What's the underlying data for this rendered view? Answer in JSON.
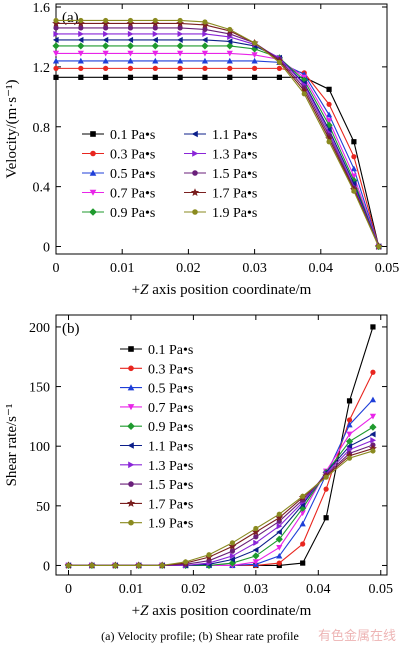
{
  "caption": "(a) Velocity profile; (b) Shear rate profile",
  "watermark": "有色金属在线",
  "chart_data": [
    {
      "type": "line",
      "panel_label": "(a)",
      "xlabel_prefix": "+",
      "xlabel_var": "Z",
      "xlabel_rest": " axis position coordinate/m",
      "ylabel": "Velocity/(m·s⁻¹)",
      "xlim": [
        0,
        0.05
      ],
      "ylim": [
        -0.05,
        1.62
      ],
      "xticks": [
        0,
        0.01,
        0.02,
        0.03,
        0.04,
        0.05
      ],
      "xtick_labels": [
        "0",
        "0.01",
        "0.02",
        "0.03",
        "0.04",
        "0.05"
      ],
      "yticks": [
        0,
        0.4,
        0.8,
        1.2,
        1.6
      ],
      "ytick_labels": [
        "0",
        "0.4",
        "0.8",
        "1.2",
        "1.6"
      ],
      "legend_position": "middle, two columns",
      "x": [
        0,
        0.00375,
        0.0075,
        0.01125,
        0.015,
        0.01875,
        0.0225,
        0.02625,
        0.03,
        0.03375,
        0.0375,
        0.04125,
        0.045,
        0.04875
      ],
      "series": [
        {
          "name": "0.1 Pa•s",
          "color": "#000000",
          "marker": "square",
          "values": [
            1.13,
            1.13,
            1.13,
            1.13,
            1.13,
            1.13,
            1.13,
            1.13,
            1.13,
            1.13,
            1.13,
            1.05,
            0.7,
            0
          ]
        },
        {
          "name": "0.3 Pa•s",
          "color": "#e8261f",
          "marker": "circle",
          "values": [
            1.19,
            1.19,
            1.19,
            1.19,
            1.19,
            1.19,
            1.19,
            1.19,
            1.19,
            1.19,
            1.16,
            0.95,
            0.6,
            0
          ]
        },
        {
          "name": "0.5 Pa•s",
          "color": "#1f3fd8",
          "marker": "triangle-up",
          "values": [
            1.24,
            1.24,
            1.24,
            1.24,
            1.24,
            1.24,
            1.24,
            1.24,
            1.24,
            1.23,
            1.15,
            0.88,
            0.52,
            0
          ]
        },
        {
          "name": "0.7 Pa•s",
          "color": "#e825e8",
          "marker": "triangle-down",
          "values": [
            1.29,
            1.29,
            1.29,
            1.29,
            1.29,
            1.29,
            1.29,
            1.29,
            1.28,
            1.25,
            1.13,
            0.84,
            0.47,
            0
          ]
        },
        {
          "name": "0.9 Pa•s",
          "color": "#1f9a2e",
          "marker": "diamond",
          "values": [
            1.34,
            1.34,
            1.34,
            1.34,
            1.34,
            1.34,
            1.34,
            1.34,
            1.32,
            1.26,
            1.11,
            0.81,
            0.44,
            0
          ]
        },
        {
          "name": "1.1 Pa•s",
          "color": "#0c1f8a",
          "marker": "triangle-left",
          "values": [
            1.38,
            1.38,
            1.38,
            1.38,
            1.38,
            1.38,
            1.38,
            1.37,
            1.34,
            1.26,
            1.09,
            0.78,
            0.42,
            0
          ]
        },
        {
          "name": "1.3 Pa•s",
          "color": "#8a25d8",
          "marker": "triangle-right",
          "values": [
            1.42,
            1.42,
            1.42,
            1.42,
            1.42,
            1.42,
            1.42,
            1.4,
            1.35,
            1.26,
            1.08,
            0.76,
            0.4,
            0
          ]
        },
        {
          "name": "1.5 Pa•s",
          "color": "#6a1f7a",
          "marker": "circle",
          "values": [
            1.46,
            1.46,
            1.46,
            1.46,
            1.46,
            1.46,
            1.45,
            1.42,
            1.36,
            1.25,
            1.06,
            0.74,
            0.39,
            0
          ]
        },
        {
          "name": "1.7 Pa•s",
          "color": "#7a1f1f",
          "marker": "star",
          "values": [
            1.49,
            1.49,
            1.49,
            1.49,
            1.49,
            1.49,
            1.48,
            1.44,
            1.36,
            1.24,
            1.04,
            0.72,
            0.38,
            0
          ]
        },
        {
          "name": "1.9 Pa•s",
          "color": "#8a8a1f",
          "marker": "circle",
          "values": [
            1.51,
            1.51,
            1.51,
            1.51,
            1.51,
            1.51,
            1.5,
            1.45,
            1.36,
            1.23,
            1.02,
            0.7,
            0.37,
            0
          ]
        }
      ]
    },
    {
      "type": "line",
      "panel_label": "(b)",
      "xlabel_prefix": "+",
      "xlabel_var": "Z",
      "xlabel_rest": " axis position coordinate/m",
      "ylabel": "Shear rate/s⁻¹",
      "xlim": [
        -0.002,
        0.051
      ],
      "ylim": [
        -8,
        210
      ],
      "xticks": [
        0,
        0.01,
        0.02,
        0.03,
        0.04,
        0.05
      ],
      "xtick_labels": [
        "0",
        "0.01",
        "0.02",
        "0.03",
        "0.04",
        "0.05"
      ],
      "yticks": [
        0,
        50,
        100,
        150,
        200
      ],
      "ytick_labels": [
        "0",
        "50",
        "100",
        "150",
        "200"
      ],
      "legend_position": "top-right",
      "x": [
        0,
        0.00375,
        0.0075,
        0.01125,
        0.015,
        0.01875,
        0.0225,
        0.02625,
        0.03,
        0.03375,
        0.0375,
        0.04125,
        0.045,
        0.04875
      ],
      "series": [
        {
          "name": "0.1 Pa•s",
          "color": "#000000",
          "marker": "square",
          "values": [
            0,
            0,
            0,
            0,
            0,
            0,
            0,
            0,
            0,
            0,
            2,
            40,
            138,
            200
          ]
        },
        {
          "name": "0.3 Pa•s",
          "color": "#e8261f",
          "marker": "circle",
          "values": [
            0,
            0,
            0,
            0,
            0,
            0,
            0,
            0,
            0,
            2,
            18,
            64,
            122,
            162
          ]
        },
        {
          "name": "0.5 Pa•s",
          "color": "#1f3fd8",
          "marker": "triangle-up",
          "values": [
            0,
            0,
            0,
            0,
            0,
            0,
            0,
            0,
            1,
            8,
            35,
            76,
            118,
            139
          ]
        },
        {
          "name": "0.7 Pa•s",
          "color": "#e825e8",
          "marker": "triangle-down",
          "values": [
            0,
            0,
            0,
            0,
            0,
            0,
            0,
            0,
            3,
            15,
            44,
            79,
            110,
            125
          ]
        },
        {
          "name": "0.9 Pa•s",
          "color": "#1f9a2e",
          "marker": "diamond",
          "values": [
            0,
            0,
            0,
            0,
            0,
            0,
            0,
            2,
            8,
            22,
            48,
            78,
            104,
            116
          ]
        },
        {
          "name": "1.1 Pa•s",
          "color": "#0c1f8a",
          "marker": "triangle-left",
          "values": [
            0,
            0,
            0,
            0,
            0,
            0,
            1,
            5,
            13,
            28,
            51,
            78,
            100,
            110
          ]
        },
        {
          "name": "1.3 Pa•s",
          "color": "#8a25d8",
          "marker": "triangle-right",
          "values": [
            0,
            0,
            0,
            0,
            0,
            0,
            2,
            8,
            19,
            33,
            53,
            77,
            97,
            105
          ]
        },
        {
          "name": "1.5 Pa•s",
          "color": "#6a1f7a",
          "marker": "circle",
          "values": [
            0,
            0,
            0,
            0,
            0,
            1,
            4,
            12,
            24,
            37,
            55,
            76,
            94,
            101
          ]
        },
        {
          "name": "1.7 Pa•s",
          "color": "#7a1f1f",
          "marker": "star",
          "values": [
            0,
            0,
            0,
            0,
            0,
            2,
            7,
            16,
            28,
            40,
            57,
            75,
            92,
            98
          ]
        },
        {
          "name": "1.9 Pa•s",
          "color": "#8a8a1f",
          "marker": "circle",
          "values": [
            0,
            0,
            0,
            0,
            0,
            3,
            9,
            19,
            31,
            43,
            58,
            74,
            90,
            96
          ]
        }
      ]
    }
  ]
}
